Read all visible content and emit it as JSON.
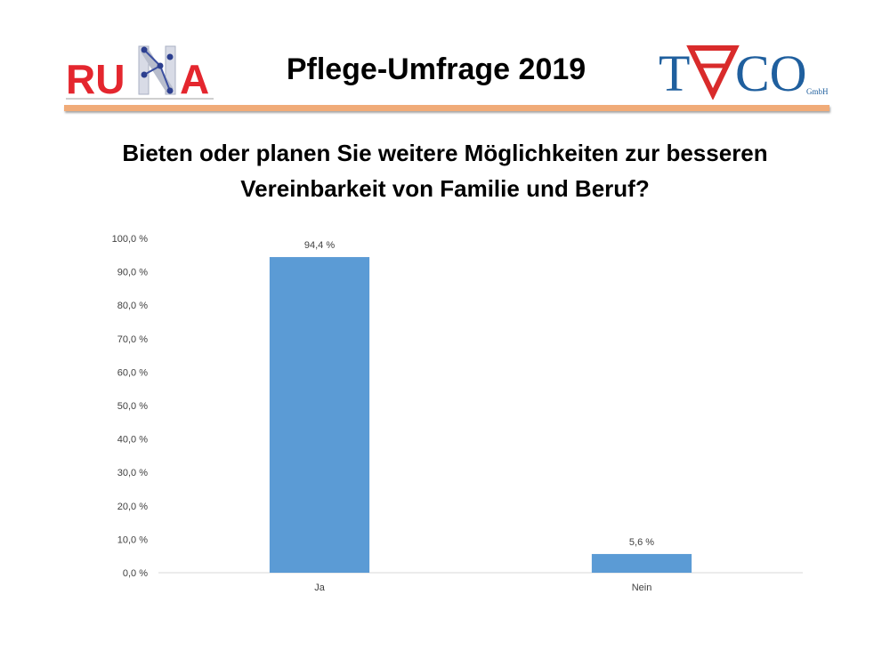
{
  "header": {
    "title": "Pflege-Umfrage 2019",
    "logo_left_text": "RUNA",
    "logo_right_text": "TACO",
    "logo_right_sub": "GmbH"
  },
  "question": "Bieten oder planen Sie weitere Möglichkeiten zur besseren Vereinbarkeit von Familie und Beruf?",
  "colors": {
    "bar": "#5b9bd5",
    "rule": "#f0ab78",
    "runa_red": "#e4262e",
    "taco_blue": "#1f5f9e",
    "taco_red": "#d92b2b"
  },
  "chart_data": {
    "type": "bar",
    "title": "Bieten oder planen Sie weitere Möglichkeiten zur besseren Vereinbarkeit von Familie und Beruf?",
    "categories": [
      "Ja",
      "Nein"
    ],
    "values": [
      94.4,
      5.6
    ],
    "value_labels": [
      "94,4 %",
      "5,6 %"
    ],
    "yticks": [
      "0,0 %",
      "10,0 %",
      "20,0 %",
      "30,0 %",
      "40,0 %",
      "50,0 %",
      "60,0 %",
      "70,0 %",
      "80,0 %",
      "90,0 %",
      "100,0 %"
    ],
    "ylim": [
      0,
      100
    ],
    "grid": false,
    "legend": "none"
  }
}
